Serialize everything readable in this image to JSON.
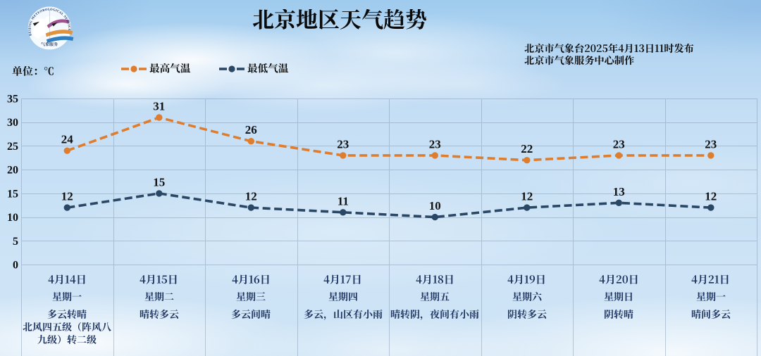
{
  "header": {
    "title": "北京地区天气趋势",
    "issued_by": "北京市气象台2025年4月13日11时发布",
    "produced_by": "北京市气象服务中心制作",
    "logo": {
      "ring_text": "BEIJING METEOROLOGICAL SERVICE",
      "bottom_text": "气象服务"
    }
  },
  "unit_label": "单位：℃",
  "legend": {
    "items": [
      {
        "label": "最高气温",
        "color": "#DE7D2D"
      },
      {
        "label": "最低气温",
        "color": "#2A4765"
      }
    ]
  },
  "chart_data": {
    "type": "line",
    "title": "北京地区天气趋势",
    "unit": "℃",
    "categories": [
      "4月14日",
      "4月15日",
      "4月16日",
      "4月17日",
      "4月18日",
      "4月19日",
      "4月20日",
      "4月21日"
    ],
    "series": [
      {
        "name": "最高气温",
        "values": [
          24,
          31,
          26,
          23,
          23,
          22,
          23,
          23
        ],
        "color": "#DE7D2D",
        "style": "dashed"
      },
      {
        "name": "最低气温",
        "values": [
          12,
          15,
          12,
          11,
          10,
          12,
          13,
          12
        ],
        "color": "#2A4765",
        "style": "dashed"
      }
    ],
    "ylim": [
      0,
      35
    ],
    "yticks": [
      0,
      5,
      10,
      15,
      20,
      25,
      30,
      35
    ],
    "xlabel": "",
    "ylabel": "",
    "grid": true,
    "legend_position": "top-left"
  },
  "days": [
    {
      "date": "4月14日",
      "weekday": "星期一",
      "weather": "多云转晴\n北风四五级（阵风八\n九级）转二级"
    },
    {
      "date": "4月15日",
      "weekday": "星期二",
      "weather": "晴转多云"
    },
    {
      "date": "4月16日",
      "weekday": "星期三",
      "weather": "多云间晴"
    },
    {
      "date": "4月17日",
      "weekday": "星期四",
      "weather": "多云，山区有小雨"
    },
    {
      "date": "4月18日",
      "weekday": "星期五",
      "weather": "晴转阴，夜间有小雨"
    },
    {
      "date": "4月19日",
      "weekday": "星期六",
      "weather": "阴转多云"
    },
    {
      "date": "4月20日",
      "weekday": "星期日",
      "weather": "阴转晴"
    },
    {
      "date": "4月21日",
      "weekday": "星期一",
      "weather": "晴间多云"
    }
  ],
  "colors": {
    "max_temp": "#DE7D2D",
    "min_temp": "#2A4765",
    "grid_line": "#7E93AC",
    "day_text": "#1C335F",
    "value_label": "#121212",
    "sky_top": "#A3CDF0",
    "sky_bottom": "#CDE4F5"
  }
}
